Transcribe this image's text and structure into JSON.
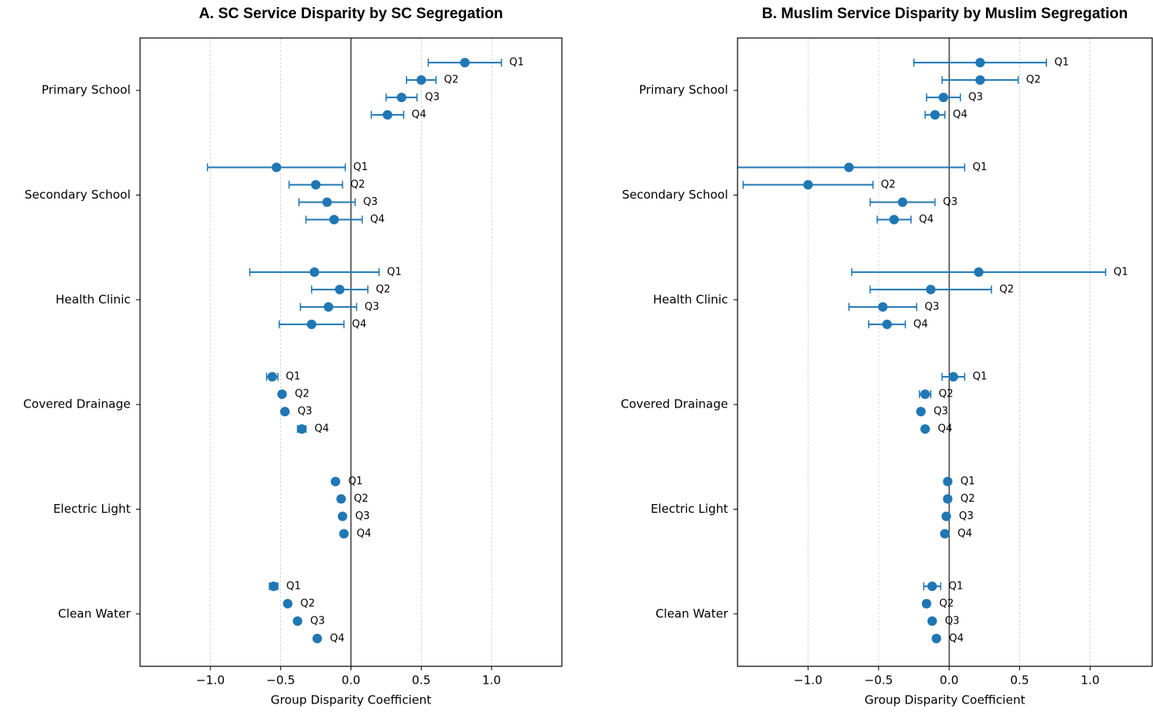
{
  "chart_data": [
    {
      "type": "errorbar",
      "title": "A. SC Service Disparity by SC Segregation",
      "xlabel": "Group Disparity Coefficient",
      "categories": [
        "Primary School",
        "Secondary School",
        "Health Clinic",
        "Covered Drainage",
        "Electric Light",
        "Clean Water"
      ],
      "series": [
        {
          "name": "Q1",
          "color": "#1f77b4",
          "values": [
            0.81,
            -0.53,
            -0.26,
            -0.56,
            -0.11,
            -0.55
          ],
          "errors": [
            0.26,
            0.49,
            0.46,
            0.04,
            0.01,
            0.03
          ]
        },
        {
          "name": "Q2",
          "color": "#1f77b4",
          "values": [
            0.5,
            -0.25,
            -0.08,
            -0.49,
            -0.07,
            -0.45
          ],
          "errors": [
            0.105,
            0.19,
            0.2,
            0.01,
            0.01,
            0.01
          ]
        },
        {
          "name": "Q3",
          "color": "#1f77b4",
          "values": [
            0.36,
            -0.17,
            -0.16,
            -0.47,
            -0.06,
            -0.38
          ],
          "errors": [
            0.11,
            0.2,
            0.2,
            0.01,
            0.01,
            0.01
          ]
        },
        {
          "name": "Q4",
          "color": "#1f77b4",
          "values": [
            0.26,
            -0.12,
            -0.28,
            -0.35,
            -0.05,
            -0.24
          ],
          "errors": [
            0.115,
            0.2,
            0.23,
            0.03,
            0.01,
            0.01
          ]
        }
      ],
      "xlim": [
        -1.5,
        1.5
      ],
      "xticks": [
        {
          "value": -1,
          "label": "−1.0"
        },
        {
          "value": -0.5,
          "label": "−0.5"
        },
        {
          "value": 0,
          "label": "0.0"
        },
        0.5,
        {
          "value": 1,
          "label": "1.0"
        }
      ],
      "grid": true
    },
    {
      "type": "errorbar",
      "title": "B. Muslim Service Disparity by Muslim Segregation",
      "xlabel": "Group Disparity Coefficient",
      "categories": [
        "Primary School",
        "Secondary School",
        "Health Clinic",
        "Covered Drainage",
        "Electric Light",
        "Clean Water"
      ],
      "series": [
        {
          "name": "Q1",
          "color": "#1f77b4",
          "values": [
            0.22,
            -0.71,
            0.21,
            0.03,
            -0.01,
            -0.12
          ],
          "errors": [
            0.47,
            0.82,
            0.9,
            0.08,
            0.01,
            0.06
          ]
        },
        {
          "name": "Q2",
          "color": "#1f77b4",
          "values": [
            0.22,
            -1.0,
            -0.13,
            -0.17,
            -0.01,
            -0.16
          ],
          "errors": [
            0.27,
            0.46,
            0.43,
            0.04,
            0.01,
            0.02
          ]
        },
        {
          "name": "Q3",
          "color": "#1f77b4",
          "values": [
            -0.04,
            -0.33,
            -0.47,
            -0.2,
            -0.02,
            -0.12
          ],
          "errors": [
            0.12,
            0.23,
            0.24,
            0.01,
            0.01,
            0.01
          ]
        },
        {
          "name": "Q4",
          "color": "#1f77b4",
          "values": [
            -0.1,
            -0.39,
            -0.44,
            -0.17,
            -0.03,
            -0.09
          ],
          "errors": [
            0.07,
            0.12,
            0.13,
            0.01,
            0.01,
            0.01
          ]
        }
      ],
      "xlim": [
        -1.5,
        1.44
      ],
      "xticks": [
        {
          "value": -1,
          "label": "−1.0"
        },
        {
          "value": -0.5,
          "label": "−0.5"
        },
        {
          "value": 0,
          "label": "0.0"
        },
        0.5,
        {
          "value": 1,
          "label": "1.0"
        }
      ],
      "grid": true
    }
  ]
}
